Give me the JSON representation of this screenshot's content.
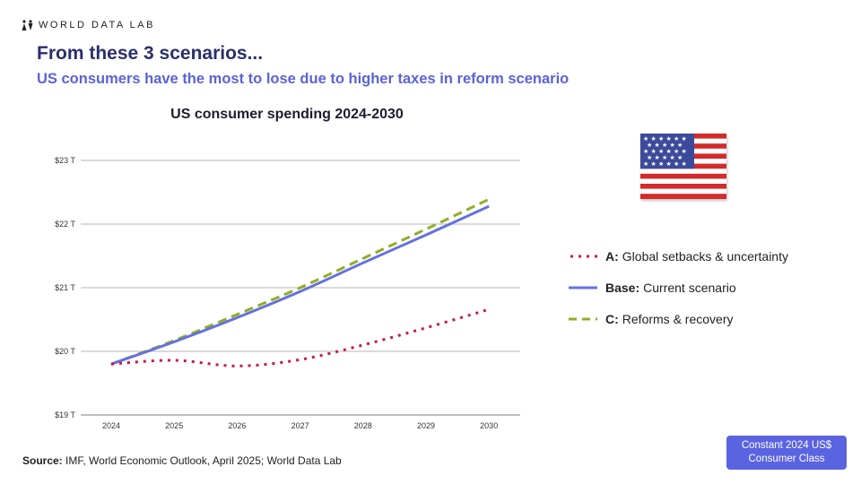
{
  "brand": "WORLD DATA LAB",
  "title": "From these 3 scenarios...",
  "subtitle": "US consumers have the most to lose due to higher taxes in reform scenario",
  "legend": [
    {
      "key": "A:",
      "label": "Global setbacks & uncertainty",
      "color": "#c8174e",
      "style": "dotted"
    },
    {
      "key": "Base:",
      "label": "Current scenario",
      "color": "#6470e0",
      "style": "solid"
    },
    {
      "key": "C:",
      "label": "Reforms & recovery",
      "color": "#8fae24",
      "style": "dashed"
    }
  ],
  "source_label": "Source:",
  "source": "IMF, World Economic Outlook, April 2025; World Data Lab",
  "badge": {
    "line1": "Constant 2024 US$",
    "line2": "Consumer Class"
  },
  "chart_data": {
    "type": "line",
    "title": "US consumer spending 2024-2030",
    "x": [
      "2024",
      "2025",
      "2026",
      "2027",
      "2028",
      "2029",
      "2030"
    ],
    "ylim": [
      19,
      23
    ],
    "yticks": [
      19,
      20,
      21,
      22,
      23
    ],
    "ytick_labels": [
      "$19 T",
      "$20 T",
      "$21 T",
      "$22 T",
      "$23 T"
    ],
    "grid": true,
    "legend_position": "right",
    "series": [
      {
        "name": "A: Global setbacks & uncertainty",
        "color": "#c8174e",
        "style": "dotted",
        "values": [
          19.8,
          19.86,
          19.77,
          19.87,
          20.1,
          20.37,
          20.66
        ]
      },
      {
        "name": "Base: Current scenario",
        "color": "#6470e0",
        "style": "solid",
        "values": [
          19.8,
          20.15,
          20.53,
          20.94,
          21.39,
          21.83,
          22.28
        ]
      },
      {
        "name": "C: Reforms & recovery",
        "color": "#8fae24",
        "style": "dashed",
        "values": [
          19.8,
          20.17,
          20.58,
          21.0,
          21.46,
          21.92,
          22.39
        ]
      }
    ]
  }
}
